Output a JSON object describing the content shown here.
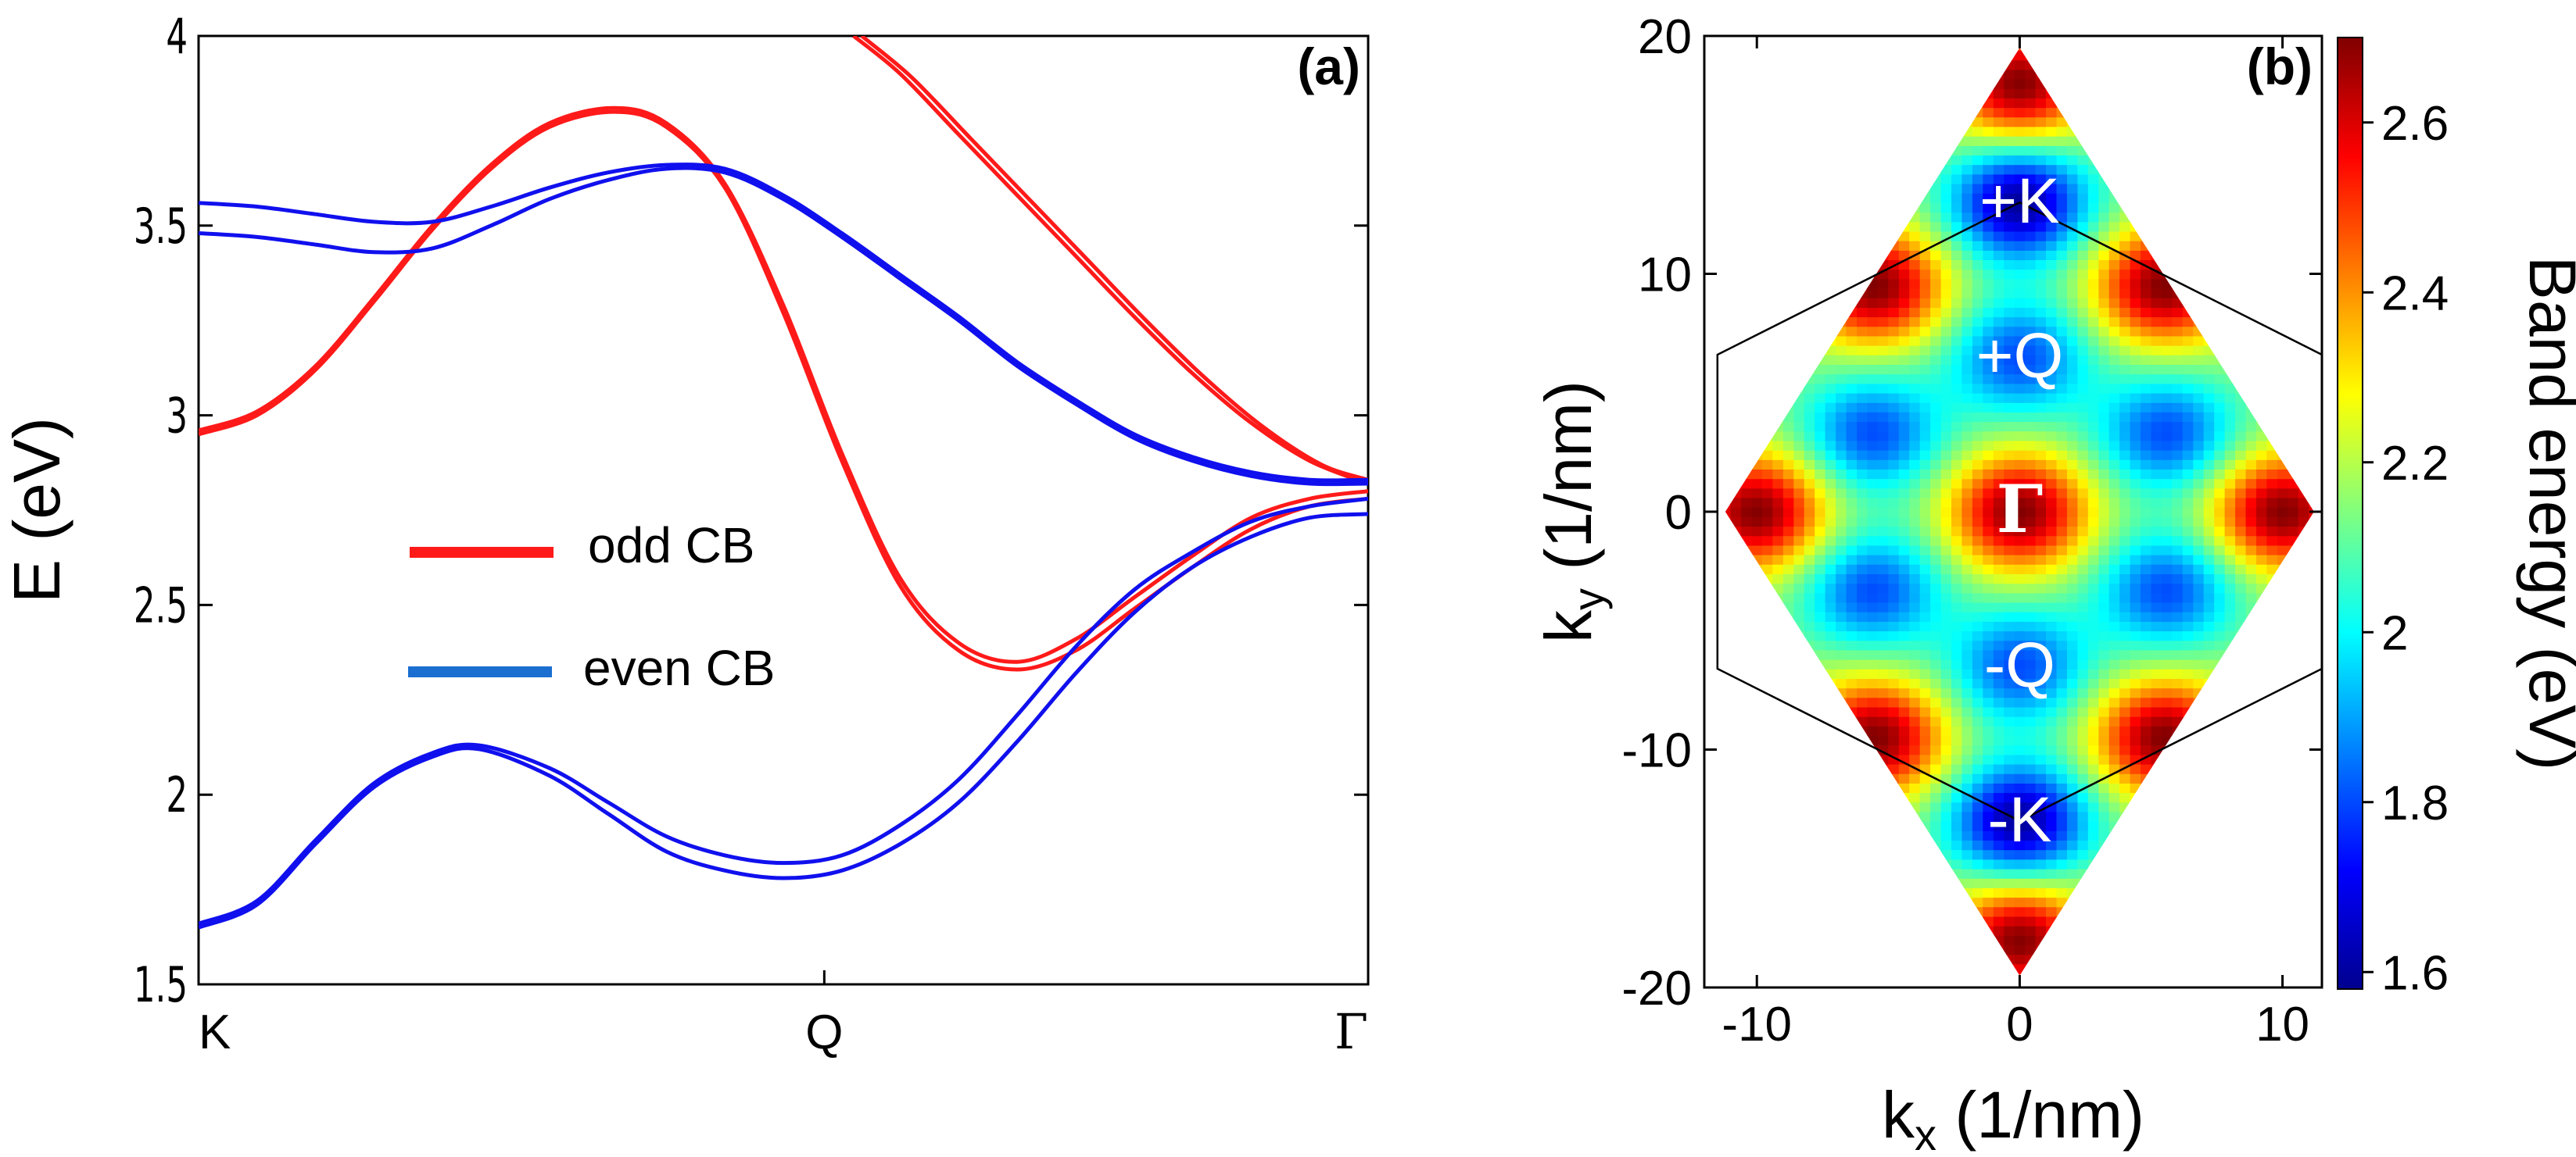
{
  "chart_data": [
    {
      "panel_label": "(a)",
      "type": "line",
      "ylabel": "E (eV)",
      "xlabel": "",
      "ylim": [
        1.5,
        4.0
      ],
      "yticks": [
        "1.5",
        "2",
        "2.5",
        "3",
        "3.5",
        "4"
      ],
      "xticks": [
        {
          "label": "K",
          "x": 0.0
        },
        {
          "label": "Q",
          "x": 0.535
        },
        {
          "label": "Γ",
          "x": 1.0
        }
      ],
      "legend": {
        "placement": "center-left",
        "entries": [
          {
            "label": "odd CB",
            "color": "#ff1a1a"
          },
          {
            "label": "even CB",
            "color": "#1a6fd0"
          }
        ]
      },
      "series": [
        {
          "group": "odd CB",
          "color": "#ff1a1a",
          "points": [
            [
              0,
              2.95
            ],
            [
              0.05,
              3.0
            ],
            [
              0.1,
              3.12
            ],
            [
              0.15,
              3.3
            ],
            [
              0.2,
              3.49
            ],
            [
              0.25,
              3.65
            ],
            [
              0.3,
              3.76
            ],
            [
              0.355,
              3.8
            ],
            [
              0.4,
              3.76
            ],
            [
              0.45,
              3.6
            ],
            [
              0.5,
              3.27
            ],
            [
              0.55,
              2.88
            ],
            [
              0.6,
              2.55
            ],
            [
              0.65,
              2.38
            ],
            [
              0.7,
              2.33
            ],
            [
              0.75,
              2.38
            ],
            [
              0.8,
              2.49
            ],
            [
              0.85,
              2.6
            ],
            [
              0.9,
              2.7
            ],
            [
              0.95,
              2.76
            ],
            [
              1.0,
              2.78
            ]
          ]
        },
        {
          "group": "odd CB",
          "color": "#ff1a1a",
          "points": [
            [
              0,
              2.96
            ],
            [
              0.05,
              3.01
            ],
            [
              0.1,
              3.13
            ],
            [
              0.15,
              3.31
            ],
            [
              0.2,
              3.5
            ],
            [
              0.25,
              3.66
            ],
            [
              0.3,
              3.77
            ],
            [
              0.355,
              3.81
            ],
            [
              0.4,
              3.77
            ],
            [
              0.45,
              3.61
            ],
            [
              0.5,
              3.29
            ],
            [
              0.55,
              2.9
            ],
            [
              0.6,
              2.57
            ],
            [
              0.65,
              2.4
            ],
            [
              0.7,
              2.35
            ],
            [
              0.75,
              2.41
            ],
            [
              0.8,
              2.52
            ],
            [
              0.85,
              2.63
            ],
            [
              0.9,
              2.73
            ],
            [
              0.95,
              2.78
            ],
            [
              1.0,
              2.8
            ]
          ]
        },
        {
          "group": "odd CB",
          "color": "#ff1a1a",
          "points": [
            [
              0.56,
              4.0
            ],
            [
              0.6,
              3.9
            ],
            [
              0.65,
              3.74
            ],
            [
              0.7,
              3.58
            ],
            [
              0.75,
              3.42
            ],
            [
              0.8,
              3.26
            ],
            [
              0.85,
              3.11
            ],
            [
              0.9,
              2.98
            ],
            [
              0.95,
              2.88
            ],
            [
              1.0,
              2.82
            ]
          ]
        },
        {
          "group": "odd CB",
          "color": "#ff1a1a",
          "points": [
            [
              0.567,
              4.0
            ],
            [
              0.61,
              3.89
            ],
            [
              0.66,
              3.73
            ],
            [
              0.71,
              3.57
            ],
            [
              0.76,
              3.41
            ],
            [
              0.81,
              3.25
            ],
            [
              0.86,
              3.1
            ],
            [
              0.91,
              2.97
            ],
            [
              0.96,
              2.87
            ],
            [
              1.0,
              2.83
            ]
          ]
        },
        {
          "group": "even CB",
          "color": "#1010ee",
          "points": [
            [
              0,
              3.56
            ],
            [
              0.05,
              3.55
            ],
            [
              0.1,
              3.53
            ],
            [
              0.15,
              3.51
            ],
            [
              0.2,
              3.51
            ],
            [
              0.25,
              3.55
            ],
            [
              0.3,
              3.6
            ],
            [
              0.35,
              3.64
            ],
            [
              0.4,
              3.66
            ],
            [
              0.45,
              3.65
            ],
            [
              0.5,
              3.58
            ],
            [
              0.55,
              3.48
            ],
            [
              0.6,
              3.37
            ],
            [
              0.65,
              3.26
            ],
            [
              0.7,
              3.14
            ],
            [
              0.75,
              3.04
            ],
            [
              0.8,
              2.95
            ],
            [
              0.85,
              2.89
            ],
            [
              0.9,
              2.85
            ],
            [
              0.95,
              2.83
            ],
            [
              1.0,
              2.83
            ]
          ]
        },
        {
          "group": "even CB",
          "color": "#1010ee",
          "points": [
            [
              0,
              3.48
            ],
            [
              0.05,
              3.47
            ],
            [
              0.1,
              3.45
            ],
            [
              0.15,
              3.43
            ],
            [
              0.2,
              3.44
            ],
            [
              0.25,
              3.5
            ],
            [
              0.3,
              3.57
            ],
            [
              0.35,
              3.62
            ],
            [
              0.4,
              3.65
            ],
            [
              0.45,
              3.64
            ],
            [
              0.5,
              3.57
            ],
            [
              0.55,
              3.47
            ],
            [
              0.6,
              3.36
            ],
            [
              0.65,
              3.25
            ],
            [
              0.7,
              3.13
            ],
            [
              0.75,
              3.03
            ],
            [
              0.8,
              2.94
            ],
            [
              0.85,
              2.88
            ],
            [
              0.9,
              2.84
            ],
            [
              0.95,
              2.82
            ],
            [
              1.0,
              2.82
            ]
          ]
        },
        {
          "group": "even CB",
          "color": "#1010ee",
          "points": [
            [
              0,
              1.66
            ],
            [
              0.05,
              1.72
            ],
            [
              0.1,
              1.88
            ],
            [
              0.15,
              2.03
            ],
            [
              0.2,
              2.11
            ],
            [
              0.24,
              2.13
            ],
            [
              0.3,
              2.07
            ],
            [
              0.35,
              1.98
            ],
            [
              0.4,
              1.89
            ],
            [
              0.45,
              1.84
            ],
            [
              0.5,
              1.82
            ],
            [
              0.55,
              1.84
            ],
            [
              0.6,
              1.92
            ],
            [
              0.65,
              2.04
            ],
            [
              0.7,
              2.21
            ],
            [
              0.75,
              2.39
            ],
            [
              0.8,
              2.54
            ],
            [
              0.85,
              2.64
            ],
            [
              0.9,
              2.72
            ],
            [
              0.95,
              2.76
            ],
            [
              1.0,
              2.78
            ]
          ]
        },
        {
          "group": "even CB",
          "color": "#1010ee",
          "points": [
            [
              0,
              1.65
            ],
            [
              0.05,
              1.71
            ],
            [
              0.1,
              1.87
            ],
            [
              0.15,
              2.02
            ],
            [
              0.2,
              2.1
            ],
            [
              0.24,
              2.12
            ],
            [
              0.3,
              2.05
            ],
            [
              0.35,
              1.95
            ],
            [
              0.4,
              1.85
            ],
            [
              0.45,
              1.8
            ],
            [
              0.5,
              1.78
            ],
            [
              0.55,
              1.8
            ],
            [
              0.6,
              1.87
            ],
            [
              0.65,
              1.98
            ],
            [
              0.7,
              2.14
            ],
            [
              0.75,
              2.32
            ],
            [
              0.8,
              2.48
            ],
            [
              0.85,
              2.6
            ],
            [
              0.9,
              2.68
            ],
            [
              0.95,
              2.73
            ],
            [
              1.0,
              2.74
            ]
          ]
        }
      ]
    },
    {
      "panel_label": "(b)",
      "type": "heatmap",
      "xlabel": "k_x (1/nm)",
      "ylabel": "k_y (1/nm)",
      "xlim": [
        -12,
        11.5
      ],
      "ylim": [
        -20,
        20
      ],
      "xticks": [
        "-10",
        "0",
        "10"
      ],
      "yticks": [
        "-20",
        "-10",
        "0",
        "10",
        "20"
      ],
      "colorbar": {
        "label": "Band energy (eV)",
        "range": [
          1.58,
          2.7
        ],
        "ticks": [
          "1.6",
          "1.8",
          "2",
          "2.2",
          "2.4",
          "2.6"
        ],
        "colormap": "jet"
      },
      "domain": "rhombus with vertices (0,19.5), (11.2,0), (0,-19.5), (-11.2,0)",
      "annotations": [
        {
          "label": "+K",
          "kx": 0,
          "ky": 13
        },
        {
          "label": "+Q",
          "kx": 0,
          "ky": 6.5
        },
        {
          "label": "Γ",
          "kx": 0,
          "ky": 0
        },
        {
          "label": "-Q",
          "kx": 0,
          "ky": -6.5
        },
        {
          "label": "-K",
          "kx": 0,
          "ky": -13
        }
      ],
      "minima": [
        {
          "kx": 0,
          "ky": 13,
          "energy": 1.6
        },
        {
          "kx": 0,
          "ky": -13,
          "energy": 1.6
        },
        {
          "kx": 0,
          "ky": 6.5,
          "energy": 1.8
        },
        {
          "kx": 0,
          "ky": -6.5,
          "energy": 1.8
        },
        {
          "kx": -5.6,
          "ky": 3.3,
          "energy": 1.8
        },
        {
          "kx": 5.6,
          "ky": 3.3,
          "energy": 1.8
        },
        {
          "kx": -5.6,
          "ky": -3.3,
          "energy": 1.8
        },
        {
          "kx": 5.6,
          "ky": -3.3,
          "energy": 1.8
        }
      ],
      "maxima": [
        {
          "kx": 0,
          "ky": 0,
          "energy": 2.7
        },
        {
          "kx": 0,
          "ky": 18,
          "energy": 2.7
        },
        {
          "kx": 0,
          "ky": -18,
          "energy": 2.7
        },
        {
          "kx": -10,
          "ky": 0,
          "energy": 2.7
        },
        {
          "kx": 10,
          "ky": 0,
          "energy": 2.7
        },
        {
          "kx": -5.5,
          "ky": 9.5,
          "energy": 2.7
        },
        {
          "kx": 5.5,
          "ky": 9.5,
          "energy": 2.7
        },
        {
          "kx": -5.5,
          "ky": -9.5,
          "energy": 2.7
        },
        {
          "kx": 5.5,
          "ky": -9.5,
          "energy": 2.7
        }
      ]
    }
  ]
}
